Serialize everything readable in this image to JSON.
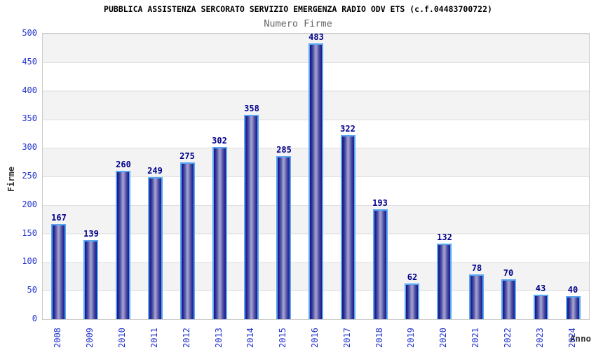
{
  "header": {
    "title": "PUBBLICA ASSISTENZA SERCORATO SERVIZIO EMERGENZA RADIO ODV ETS (c.f.04483700722)",
    "subtitle": "Numero Firme"
  },
  "chart_data": {
    "type": "bar",
    "title": "PUBBLICA ASSISTENZA SERCORATO SERVIZIO EMERGENZA RADIO ODV ETS (c.f.04483700722)",
    "subtitle": "Numero Firme",
    "xlabel": "Anno",
    "ylabel": "Firme",
    "categories": [
      "2008",
      "2009",
      "2010",
      "2011",
      "2012",
      "2013",
      "2014",
      "2015",
      "2016",
      "2017",
      "2018",
      "2019",
      "2020",
      "2021",
      "2022",
      "2023",
      "2024"
    ],
    "values": [
      167,
      139,
      260,
      249,
      275,
      302,
      358,
      285,
      483,
      322,
      193,
      62,
      132,
      78,
      70,
      43,
      40
    ],
    "ylim": [
      0,
      500
    ],
    "yticks": [
      0,
      50,
      100,
      150,
      200,
      250,
      300,
      350,
      400,
      450,
      500
    ],
    "grid": "horizontal gridlines with alternating gray/white bands every 50",
    "legend_position": "none",
    "colors": {
      "bar_fill_dark": "#17178c",
      "bar_fill_light": "#a4a4d2",
      "bar_border": "#57a7f2",
      "value_label": "#00008b",
      "tick_label": "#2233cc",
      "axis_title": "#333333",
      "title": "#000000",
      "subtitle": "#666666",
      "band_gray": "#f3f3f3",
      "band_white": "#ffffff",
      "plot_border": "#cccccc"
    }
  }
}
